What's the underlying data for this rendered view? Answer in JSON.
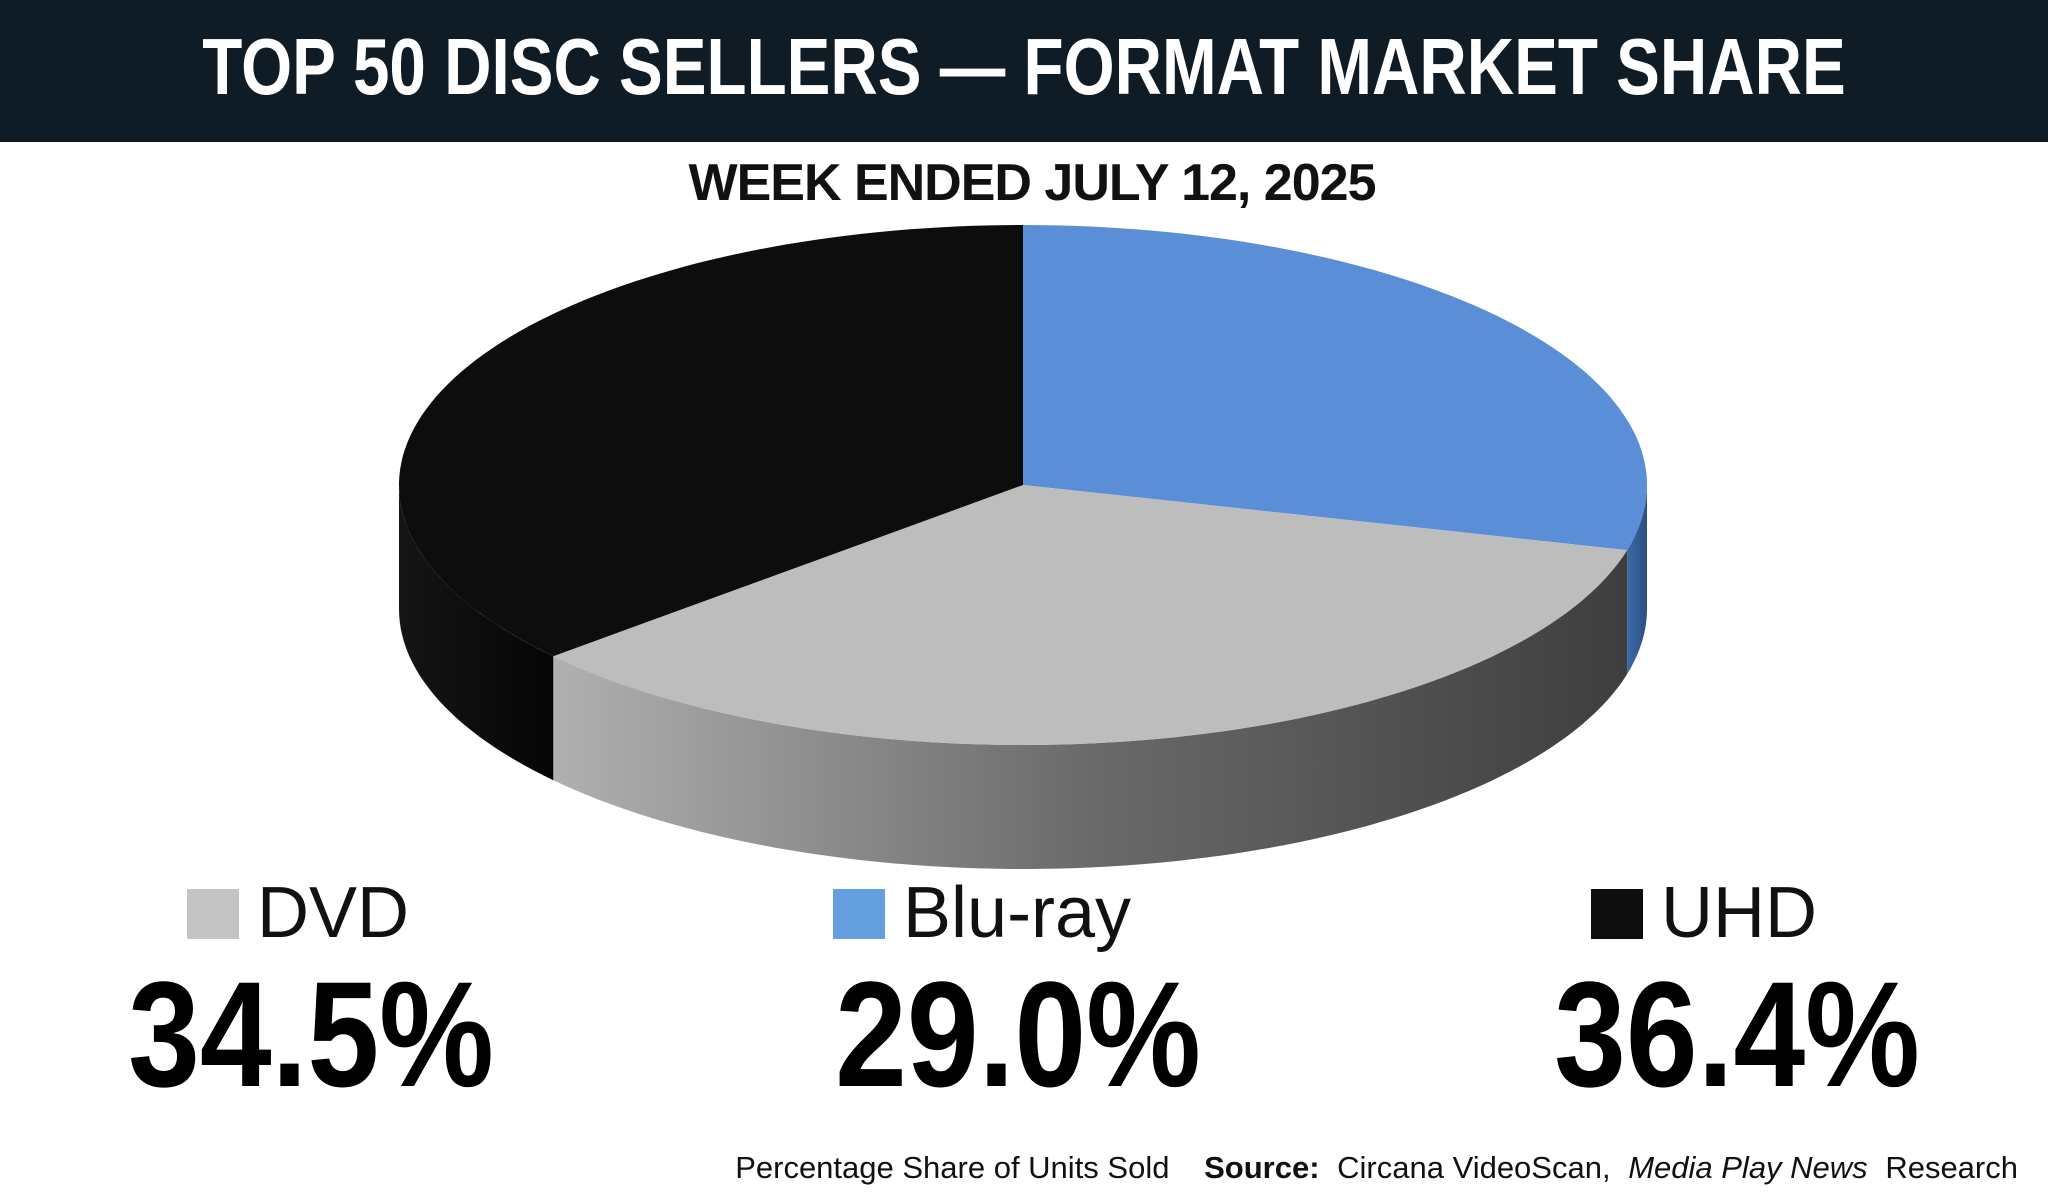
{
  "chart_data": {
    "type": "pie3d",
    "title": "TOP 50 DISC SELLERS — FORMAT MARKET SHARE",
    "subtitle": "WEEK ENDED JULY 12, 2025",
    "categories": [
      "DVD",
      "Blu-ray",
      "UHD"
    ],
    "values": [
      34.5,
      29.0,
      36.4
    ],
    "value_labels": [
      "34.5%",
      "29.0%",
      "36.4%"
    ],
    "colors": [
      "#bdbdbd",
      "#5a8ed6",
      "#0d0d0d"
    ],
    "legend_colors": [
      "#c4c4c4",
      "#64a0e0",
      "#0d0d0d"
    ],
    "footnote": "Percentage Share of Units Sold",
    "source_label": "Source:",
    "source": "Circana VideoScan,",
    "source_publication": "Media Play News",
    "source_suffix": "Research"
  }
}
